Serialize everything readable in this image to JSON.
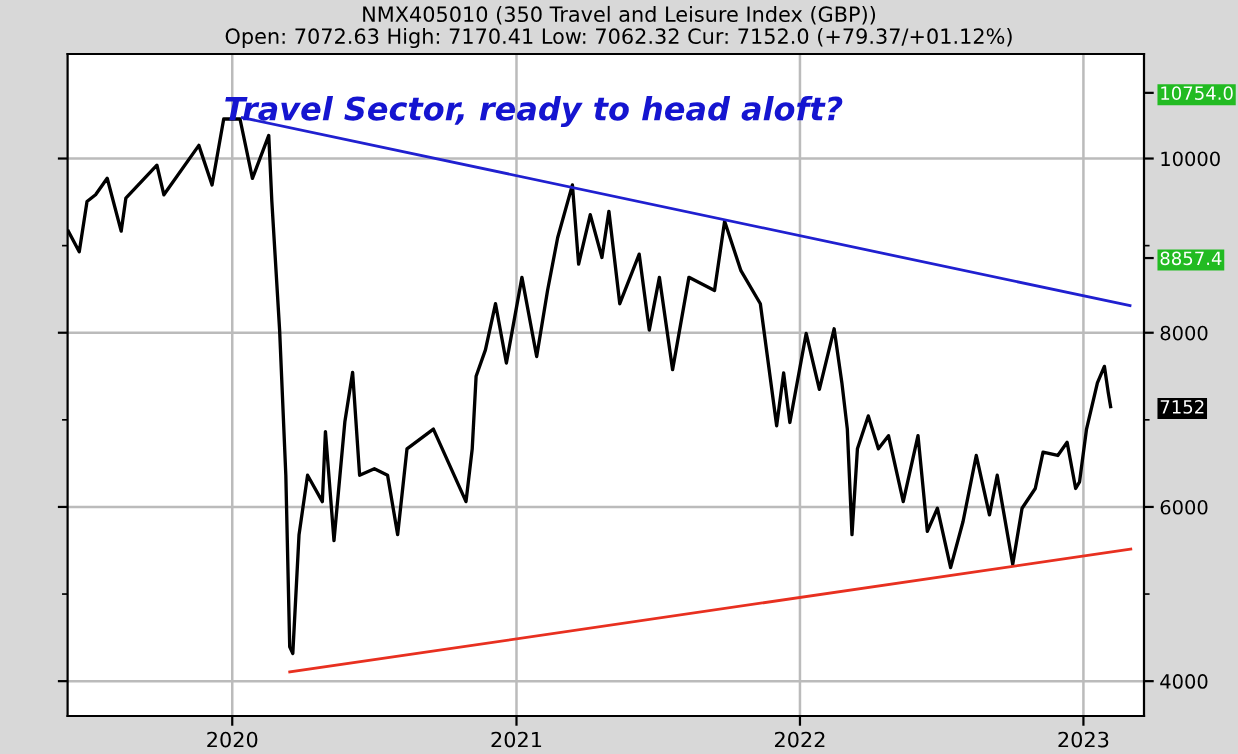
{
  "chart_data": {
    "type": "line",
    "title": "NMX405010 (350 Travel and Leisure Index (GBP))",
    "subtitle": "Open: 7072.63 High: 7170.41 Low: 7062.32 Cur: 7152.0 (+79.37/+01.12%)",
    "annotations": [
      "Travel Sector, ready to head aloft?"
    ],
    "xlim": [
      "2019-06-03",
      "2023-03-20"
    ],
    "xticks": [
      {
        "value": "2020-01-01",
        "label": "2020"
      },
      {
        "value": "2021-01-01",
        "label": "2021"
      },
      {
        "value": "2022-01-01",
        "label": "2022"
      },
      {
        "value": "2023-01-01",
        "label": "2023"
      }
    ],
    "ylim": [
      3600,
      11200
    ],
    "yticks": [
      4000,
      {
        "value": 5000,
        "label": null
      },
      6000,
      {
        "value": 7000,
        "label": null
      },
      8000,
      {
        "value": 9000,
        "label": null
      },
      10000,
      {
        "value": 10754.0,
        "label": "10754.0"
      },
      {
        "value": 8857.4,
        "label": "8857.4"
      },
      {
        "value": 7152,
        "label": "7152"
      }
    ],
    "grid": true,
    "legend": false,
    "line_style": "solid",
    "marker": "none",
    "series": [
      {
        "color": "#000000",
        "x": [
          "2019-06-04",
          "2019-06-18",
          "2019-06-28",
          "2019-07-09",
          "2019-07-24",
          "2019-08-11",
          "2019-08-17",
          "2019-09-26",
          "2019-10-05",
          "2019-11-19",
          "2019-12-06",
          "2019-12-21",
          "2020-01-11",
          "2020-01-27",
          "2020-02-17",
          "2020-02-21",
          "2020-03-02",
          "2020-03-10",
          "2020-03-15",
          "2020-03-19",
          "2020-03-27",
          "2020-04-07",
          "2020-04-26",
          "2020-04-30",
          "2020-05-11",
          "2020-05-25",
          "2020-06-04",
          "2020-06-13",
          "2020-07-02",
          "2020-07-19",
          "2020-08-01",
          "2020-08-13",
          "2020-09-16",
          "2020-10-28",
          "2020-11-05",
          "2020-11-10",
          "2020-11-22",
          "2020-12-05",
          "2020-12-19",
          "2021-01-08",
          "2021-01-27",
          "2021-02-10",
          "2021-02-23",
          "2021-03-14",
          "2021-03-22",
          "2021-04-06",
          "2021-04-21",
          "2021-04-30",
          "2021-05-14",
          "2021-06-08",
          "2021-06-21",
          "2021-07-04",
          "2021-07-21",
          "2021-08-11",
          "2021-09-13",
          "2021-09-26",
          "2021-10-17",
          "2021-11-11",
          "2021-12-02",
          "2021-12-11",
          "2021-12-19",
          "2022-01-09",
          "2022-01-26",
          "2022-02-14",
          "2022-02-24",
          "2022-03-03",
          "2022-03-09",
          "2022-03-16",
          "2022-03-30",
          "2022-04-12",
          "2022-04-25",
          "2022-05-14",
          "2022-06-02",
          "2022-06-14",
          "2022-06-27",
          "2022-07-14",
          "2022-07-30",
          "2022-08-16",
          "2022-09-02",
          "2022-09-12",
          "2022-10-02",
          "2022-10-14",
          "2022-10-31",
          "2022-11-10",
          "2022-11-29",
          "2022-12-11",
          "2022-12-22",
          "2022-12-27",
          "2023-01-05",
          "2023-01-19",
          "2023-01-28",
          "2023-02-02",
          "2023-02-05"
        ],
        "values": [
          9166,
          8930,
          9507,
          9584,
          9773,
          9166,
          9545,
          9924,
          9584,
          10151,
          9697,
          10454,
          10454,
          9773,
          10265,
          9507,
          8030,
          6364,
          4394,
          4318,
          5682,
          6364,
          6061,
          6864,
          5614,
          6977,
          7545,
          6364,
          6439,
          6364,
          5682,
          6667,
          6894,
          6061,
          6667,
          7500,
          7803,
          8333,
          7652,
          8636,
          7727,
          8485,
          9091,
          9697,
          8788,
          9356,
          8864,
          9394,
          8333,
          8902,
          8030,
          8636,
          7576,
          8636,
          8485,
          9280,
          8712,
          8333,
          6932,
          7538,
          6970,
          7992,
          7350,
          8045,
          7424,
          6894,
          5682,
          6667,
          7045,
          6667,
          6818,
          6061,
          6818,
          5720,
          5985,
          5303,
          5833,
          6591,
          5909,
          6364,
          5341,
          5985,
          6212,
          6629,
          6591,
          6742,
          6212,
          6288,
          6894,
          7424,
          7614,
          7311,
          7152
        ]
      },
      {
        "type": "line",
        "color": "#2020d0",
        "x": [
          "2020-01-14",
          "2023-03-02"
        ],
        "values": [
          10470,
          8311
        ]
      },
      {
        "type": "line",
        "color": "#e83020",
        "x": [
          "2020-03-15",
          "2023-03-03"
        ],
        "values": [
          4106,
          5515
        ]
      }
    ]
  }
}
